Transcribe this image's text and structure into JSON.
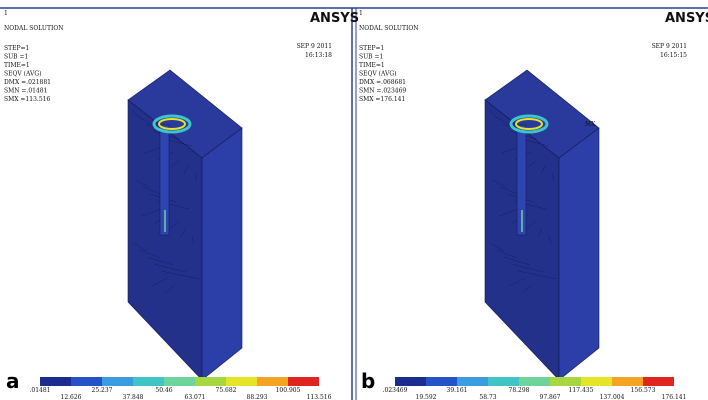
{
  "panels": [
    {
      "label": "a",
      "window": "1",
      "logo": "ANSYS",
      "header": "NODAL SOLUTION",
      "info": [
        "STEP=1",
        "SUB =1",
        "TIME=1",
        "SEQV     (AVG)",
        "DMX =.021881",
        "SMN =.01481",
        "SMX =113.516"
      ],
      "date": "SEP  9 2011",
      "time": "16:13:18",
      "legend_top": [
        ".01481",
        "25.237",
        "50.46",
        "75.682",
        "100.905"
      ],
      "legend_bottom": [
        "12.626",
        "37.848",
        "63.071",
        "88.293",
        "113.516"
      ]
    },
    {
      "label": "b",
      "window": "1",
      "logo": "ANSYS",
      "header": "NODAL SOLUTION",
      "info": [
        "STEP=1",
        "SUB =1",
        "TIME=1",
        "SEQV     (AVG)",
        "DMX =.068681",
        "SMN =.023469",
        "SMX =176.141"
      ],
      "date": "SEP  9 2011",
      "time": "16:15:15",
      "marker": "MX",
      "legend_top": [
        ".023469",
        "39.161",
        "78.298",
        "117.435",
        "156.573"
      ],
      "legend_bottom": [
        "19.592",
        "58.73",
        "97.867",
        "137.004",
        "176.141"
      ]
    }
  ]
}
